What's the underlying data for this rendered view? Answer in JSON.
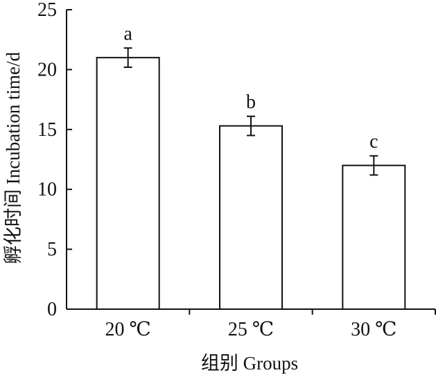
{
  "chart_data": {
    "type": "bar",
    "categories": [
      "20 ℃",
      "25 ℃",
      "30 ℃"
    ],
    "values": [
      21.0,
      15.3,
      12.0
    ],
    "error": [
      0.8,
      0.8,
      0.8
    ],
    "significance": [
      "a",
      "b",
      "c"
    ],
    "xlabel": "组别 Groups",
    "ylabel": "孵化时间 Incubation time/d",
    "ylim": [
      0,
      25
    ],
    "yticks": [
      0,
      5,
      10,
      15,
      20,
      25
    ],
    "grid": false,
    "colors": {
      "bar_fill": "#ffffff",
      "bar_stroke": "#111111",
      "axis": "#111111"
    }
  }
}
